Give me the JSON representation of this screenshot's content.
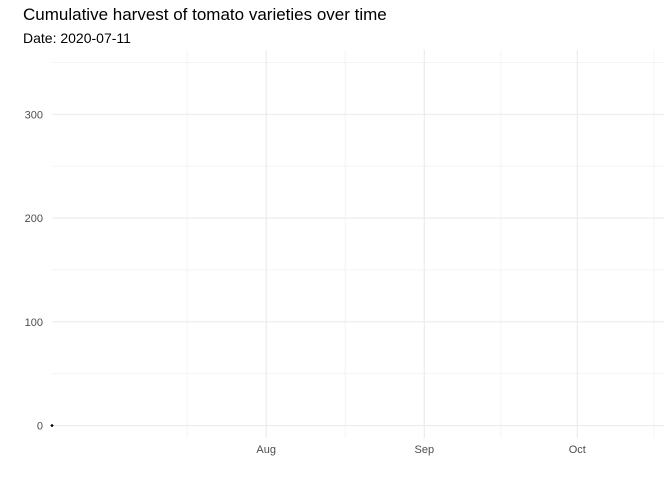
{
  "chart_data": {
    "type": "line",
    "title": "Cumulative harvest of tomato varieties over time",
    "subtitle": "Date: 2020-07-11",
    "xlabel": "",
    "ylabel": "",
    "xlim": [
      "2020-06-20",
      "2020-10-18"
    ],
    "ylim": [
      -12,
      362
    ],
    "x_ticks": [
      {
        "label": "Aug",
        "value": "2020-08-01"
      },
      {
        "label": "Sep",
        "value": "2020-09-01"
      },
      {
        "label": "Oct",
        "value": "2020-10-01"
      }
    ],
    "y_ticks": [
      {
        "label": "0",
        "value": 0
      },
      {
        "label": "100",
        "value": 100
      },
      {
        "label": "200",
        "value": 200
      },
      {
        "label": "300",
        "value": 300
      }
    ],
    "grid": true,
    "legend": "none",
    "series": [
      {
        "date": "2020-06-20",
        "value": 0
      },
      {
        "date": "2020-06-20",
        "value": 0
      },
      {
        "date": "2020-06-20",
        "value": 0
      },
      {
        "date": "2020-06-20",
        "value": 0
      },
      {
        "date": "2020-06-20",
        "value": 0
      },
      {
        "date": "2020-06-20",
        "value": 0
      },
      {
        "date": "2020-06-20",
        "value": 0
      },
      {
        "date": "2020-06-20",
        "value": 0
      }
    ],
    "colors": {
      "text": "#000000",
      "grid_major": "#ebebeb",
      "grid_minor": "#f4f4f4",
      "tick": "#4d4d4d"
    }
  }
}
